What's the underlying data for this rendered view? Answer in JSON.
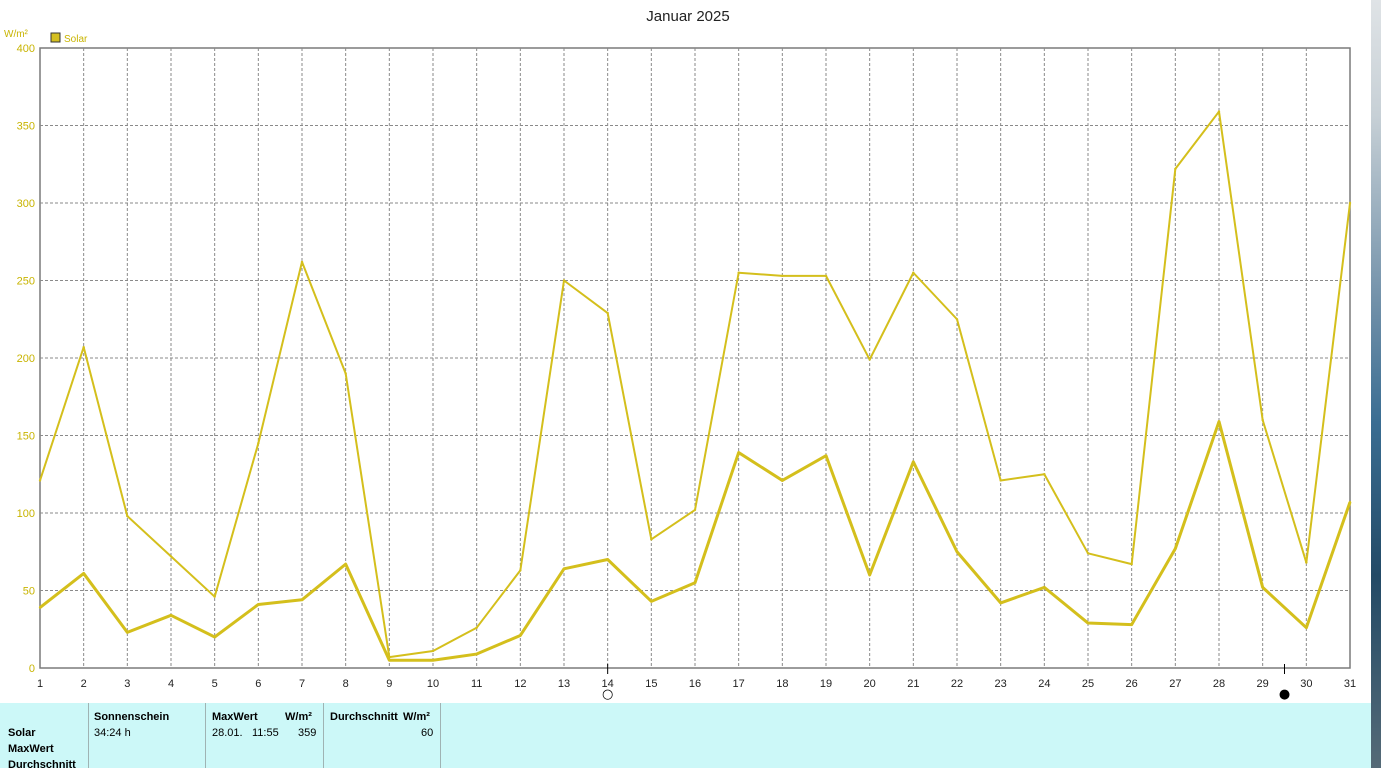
{
  "chart_data": {
    "type": "line",
    "title": "Januar 2025",
    "ylabel": "W/m²",
    "ylim": [
      0,
      400
    ],
    "yticks": [
      0,
      50,
      100,
      150,
      200,
      250,
      300,
      350,
      400
    ],
    "legend": {
      "label": "Solar",
      "color": "#c8b400",
      "placement": "top-left"
    },
    "grid": true,
    "x": [
      1,
      2,
      3,
      4,
      5,
      6,
      7,
      8,
      9,
      10,
      11,
      12,
      13,
      14,
      15,
      16,
      17,
      18,
      19,
      20,
      21,
      22,
      23,
      24,
      25,
      26,
      27,
      28,
      29,
      30,
      31
    ],
    "series": [
      {
        "role": "max",
        "values": [
          121,
          207,
          98,
          72,
          46,
          145,
          262,
          190,
          7,
          11,
          26,
          63,
          250,
          229,
          83,
          102,
          255,
          253,
          253,
          199,
          255,
          225,
          121,
          125,
          74,
          67,
          322,
          359,
          160,
          68,
          300
        ]
      },
      {
        "role": "average",
        "values": [
          39,
          61,
          23,
          34,
          20,
          41,
          44,
          67,
          5,
          5,
          9,
          21,
          64,
          70,
          43,
          55,
          139,
          121,
          137,
          60,
          133,
          75,
          42,
          52,
          29,
          28,
          77,
          159,
          52,
          26,
          107
        ]
      }
    ],
    "moon_markers": [
      {
        "day": 14,
        "symbol": "○"
      },
      {
        "day": 29.5,
        "symbol": "●"
      }
    ]
  },
  "summary": {
    "rows": [
      "Solar",
      "MaxWert",
      "Durchschnitt"
    ],
    "sonnenschein": {
      "header": "Sonnenschein",
      "value": "34:24 h"
    },
    "maxwert": {
      "header": "MaxWert",
      "unit": "W/m²",
      "date": "28.01.",
      "time": "11:55",
      "value": "359"
    },
    "durchschnitt": {
      "header": "Durchschnitt",
      "unit": "W/m²",
      "value": "60"
    }
  }
}
